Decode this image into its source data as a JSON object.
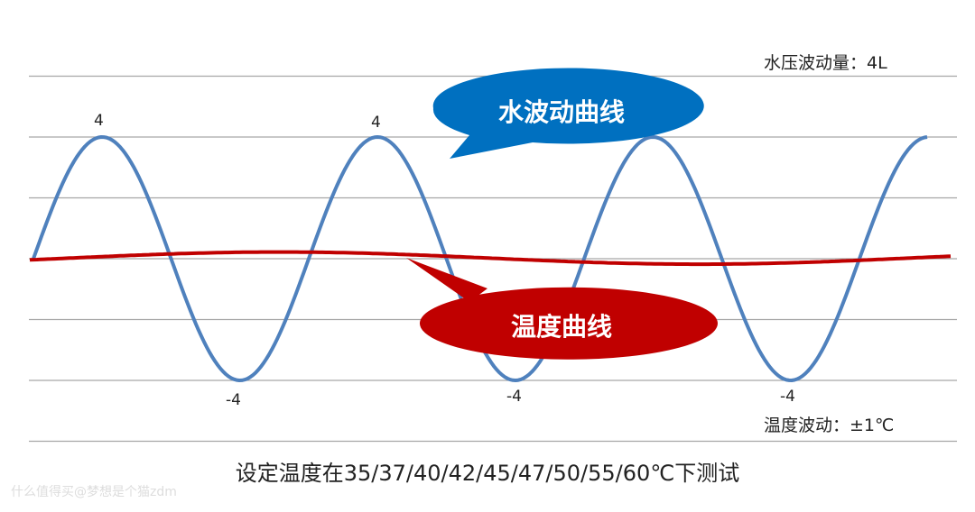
{
  "chart_data": {
    "type": "line",
    "title": "",
    "ylim": [
      -6,
      6
    ],
    "grid": true,
    "gridlines_y": [
      6,
      4,
      2,
      0,
      -2,
      -4,
      -6
    ],
    "series": [
      {
        "name": "水波动曲线",
        "color": "#4f81bd",
        "amplitude": 4,
        "cycles": 3.25,
        "peak_labels": [
          "4",
          "4"
        ],
        "trough_labels": [
          "-4",
          "-4",
          "-4"
        ]
      },
      {
        "name": "温度曲线",
        "color": "#c00000",
        "amplitude": 0.2,
        "cycles": 1.1
      }
    ]
  },
  "labels": {
    "peak1": "4",
    "peak2": "4",
    "trough1": "-4",
    "trough2": "-4",
    "trough3": "-4",
    "water_note": "水压波动量：4L",
    "temp_note": "温度波动：±1℃",
    "water_callout": "水波动曲线",
    "temp_callout": "温度曲线",
    "caption": "设定温度在35/37/40/42/45/47/50/55/60℃下测试"
  },
  "colors": {
    "water": "#4f81bd",
    "temp": "#c00000",
    "water_callout": "#0070c0",
    "temp_callout": "#c00000",
    "grid": "#a6a6a6"
  },
  "watermark": "什么值得买@梦想是个猫zdm"
}
